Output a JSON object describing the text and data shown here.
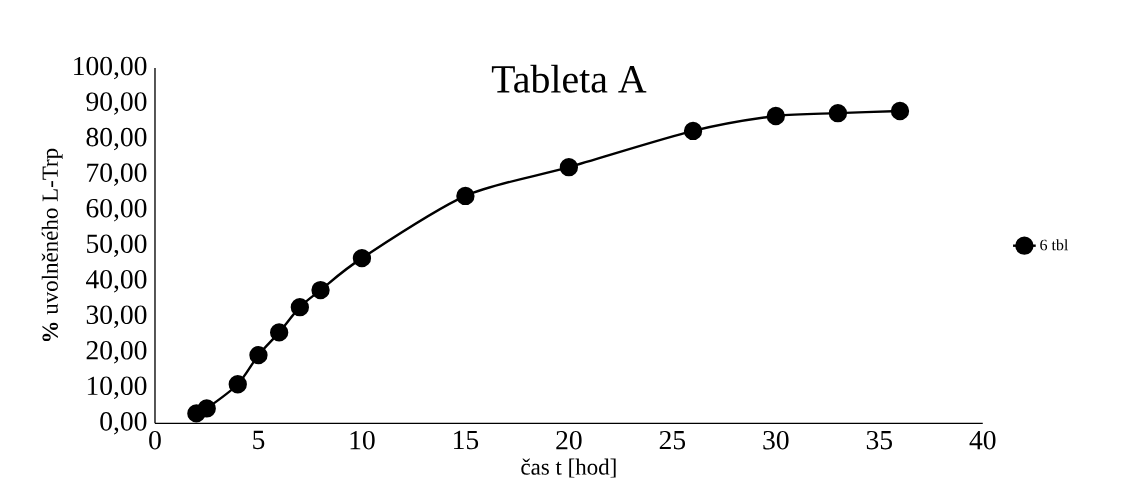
{
  "chart_data": {
    "type": "line",
    "title": "Tableta A",
    "xlabel": "čas t [hod]",
    "ylabel": "**%** uvolněného L-Trp",
    "x": [
      2,
      2.5,
      4,
      5,
      6,
      7,
      8,
      10,
      15,
      20,
      26,
      30,
      33,
      36
    ],
    "series": [
      {
        "name": "6 tbl",
        "color": "#000000",
        "values": [
          2.8,
          4.2,
          11,
          19.2,
          25.6,
          32.7,
          37.5,
          46.5,
          64,
          72.1,
          82.3,
          86.5,
          87.3,
          87.9
        ]
      }
    ],
    "xlim": [
      0,
      40
    ],
    "xticks": [
      0,
      5,
      10,
      15,
      20,
      25,
      30,
      35,
      40
    ],
    "ylim": [
      0,
      100
    ],
    "yticks": [
      {
        "value": 0,
        "label": "0,00"
      },
      {
        "value": 10,
        "label": "10,00"
      },
      {
        "value": 20,
        "label": "20,00"
      },
      {
        "value": 30,
        "label": "30,00"
      },
      {
        "value": 40,
        "label": "40,00"
      },
      {
        "value": 50,
        "label": "50,00"
      },
      {
        "value": 60,
        "label": "60,00"
      },
      {
        "value": 70,
        "label": "70,00"
      },
      {
        "value": 80,
        "label": "80,00"
      },
      {
        "value": 90,
        "label": "90,00"
      },
      {
        "value": 100,
        "label": "100,00"
      }
    ],
    "grid": false,
    "legend": "right",
    "marker": "circle",
    "line_style": "solid"
  }
}
